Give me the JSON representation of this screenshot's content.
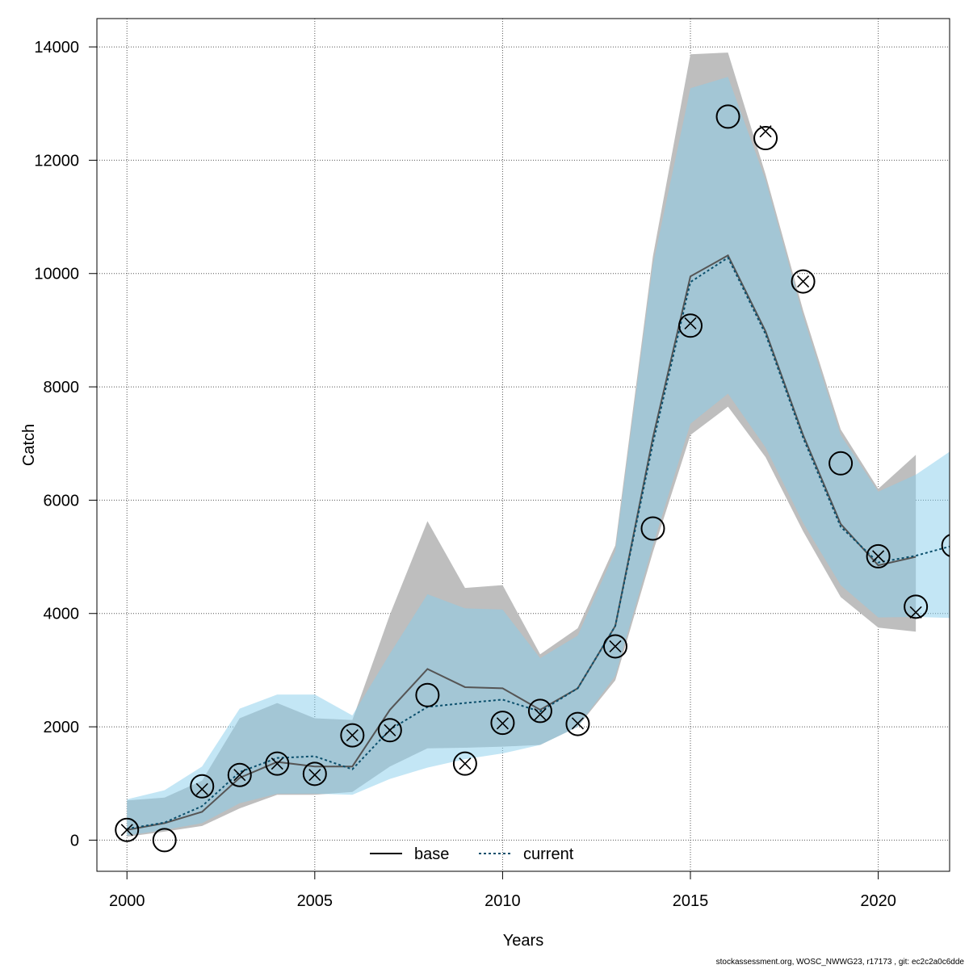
{
  "chart_data": {
    "type": "line",
    "xlabel": "Years",
    "ylabel": "Catch",
    "xlim": [
      1999.2,
      2021.9
    ],
    "ylim": [
      -550,
      14500
    ],
    "x_ticks": [
      2000,
      2005,
      2010,
      2015,
      2020
    ],
    "y_ticks": [
      0,
      2000,
      4000,
      6000,
      8000,
      10000,
      12000,
      14000
    ],
    "grid": true,
    "legend_position": "bottom-center",
    "colors": {
      "base_band": "#bebebe",
      "current_band": "#87ceeb",
      "base_line": "#555555",
      "current_line": "#0b4f6c",
      "points": "#000000"
    },
    "series": [
      {
        "name": "base",
        "style": "solid",
        "x": [
          2000,
          2001,
          2002,
          2003,
          2004,
          2005,
          2006,
          2007,
          2008,
          2009,
          2010,
          2011,
          2012,
          2013,
          2014,
          2015,
          2016,
          2017,
          2018,
          2019,
          2020,
          2021
        ],
        "y": [
          180,
          300,
          500,
          1100,
          1380,
          1300,
          1300,
          2300,
          3020,
          2700,
          2680,
          2300,
          2680,
          3780,
          7100,
          9950,
          10320,
          8980,
          7150,
          5580,
          4850,
          5000
        ],
        "lower": [
          60,
          150,
          250,
          560,
          800,
          800,
          850,
          1300,
          1620,
          1630,
          1650,
          1680,
          2000,
          2820,
          5080,
          7150,
          7650,
          6760,
          5450,
          4290,
          3750,
          3680
        ],
        "upper": [
          700,
          750,
          1050,
          2150,
          2420,
          2150,
          2120,
          3980,
          5630,
          4450,
          4500,
          3280,
          3740,
          5200,
          10300,
          13870,
          13900,
          11750,
          9350,
          7250,
          6200,
          6800
        ]
      },
      {
        "name": "current",
        "style": "dotted",
        "x": [
          2000,
          2001,
          2002,
          2003,
          2004,
          2005,
          2006,
          2007,
          2008,
          2009,
          2010,
          2011,
          2012,
          2013,
          2014,
          2015,
          2016,
          2017,
          2018,
          2019,
          2020,
          2021,
          2022
        ],
        "y": [
          200,
          310,
          600,
          1200,
          1450,
          1480,
          1250,
          1950,
          2350,
          2420,
          2480,
          2270,
          2680,
          3780,
          7000,
          9850,
          10280,
          8930,
          7100,
          5530,
          4900,
          5020,
          5200
        ],
        "lower": [
          80,
          180,
          300,
          650,
          820,
          820,
          800,
          1080,
          1280,
          1430,
          1530,
          1680,
          2000,
          2900,
          5200,
          7350,
          7880,
          6930,
          5600,
          4500,
          3930,
          3940,
          3920
        ],
        "upper": [
          720,
          880,
          1300,
          2320,
          2570,
          2570,
          2200,
          3290,
          4340,
          4090,
          4070,
          3210,
          3610,
          5100,
          10150,
          13270,
          13470,
          11650,
          9250,
          7150,
          6150,
          6450,
          6900
        ]
      }
    ],
    "observations": {
      "circles": {
        "x": [
          2000,
          2001,
          2002,
          2003,
          2004,
          2005,
          2006,
          2007,
          2008,
          2009,
          2010,
          2011,
          2012,
          2013,
          2014,
          2015,
          2016,
          2017,
          2018,
          2019,
          2020,
          2021,
          2022
        ],
        "y": [
          180,
          0,
          950,
          1150,
          1350,
          1170,
          1850,
          1940,
          2560,
          1350,
          2070,
          2280,
          2050,
          3420,
          5500,
          9080,
          12770,
          12390,
          9860,
          6650,
          5010,
          4120,
          5200
        ]
      },
      "crosses": {
        "x": [
          2000,
          2002,
          2003,
          2004,
          2005,
          2006,
          2007,
          2009,
          2010,
          2011,
          2012,
          2013,
          2015,
          2017,
          2018,
          2020,
          2021
        ],
        "y": [
          180,
          900,
          1150,
          1350,
          1150,
          1850,
          1940,
          1350,
          2060,
          2220,
          2060,
          3420,
          9120,
          12510,
          9860,
          5010,
          4020
        ]
      }
    }
  },
  "footer": "stockassessment.org, WOSC_NWWG23, r17173 , git: ec2c2a0c6dde"
}
